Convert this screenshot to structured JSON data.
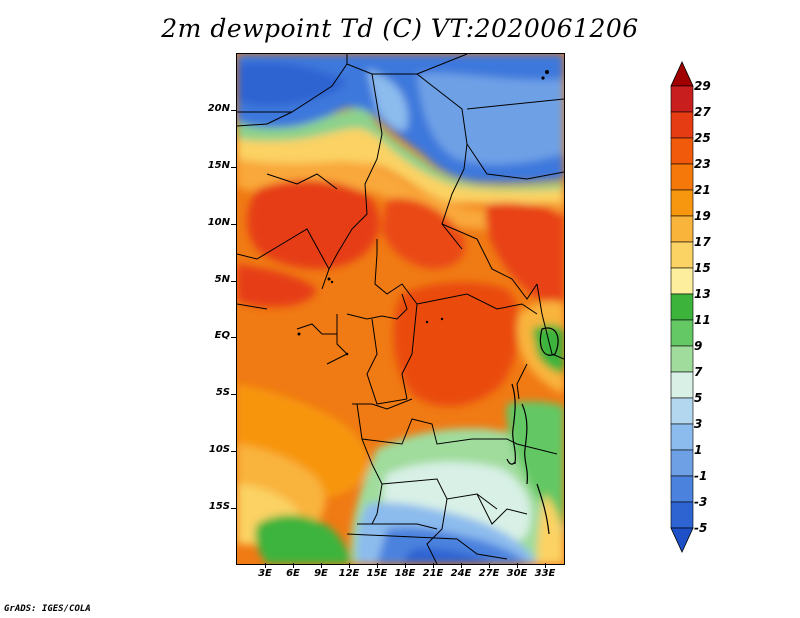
{
  "title": "2m dewpoint Td (C) VT:2020061206",
  "credit": "GrADS: IGES/COLA",
  "lat_labels": [
    "20N",
    "15N",
    "10N",
    "5N",
    "EQ",
    "5S",
    "10S",
    "15S"
  ],
  "lon_labels": [
    "3E",
    "6E",
    "9E",
    "12E",
    "15E",
    "18E",
    "21E",
    "24E",
    "27E",
    "30E",
    "33E"
  ],
  "colorbar": {
    "labels": [
      "29",
      "27",
      "25",
      "23",
      "21",
      "19",
      "17",
      "15",
      "13",
      "11",
      "9",
      "7",
      "5",
      "3",
      "1",
      "-1",
      "-3",
      "-5"
    ],
    "colors": [
      "#a00000",
      "#c81e1e",
      "#e63c14",
      "#f05a0a",
      "#f5780a",
      "#f7960f",
      "#f9b43c",
      "#fbd264",
      "#fcee9c",
      "#3cb43c",
      "#64c864",
      "#a0dc9c",
      "#d8f0e6",
      "#b4d7f0",
      "#8cbbed",
      "#6ea0e6",
      "#4b82de",
      "#2d64d2",
      "#1e50c8"
    ]
  }
}
